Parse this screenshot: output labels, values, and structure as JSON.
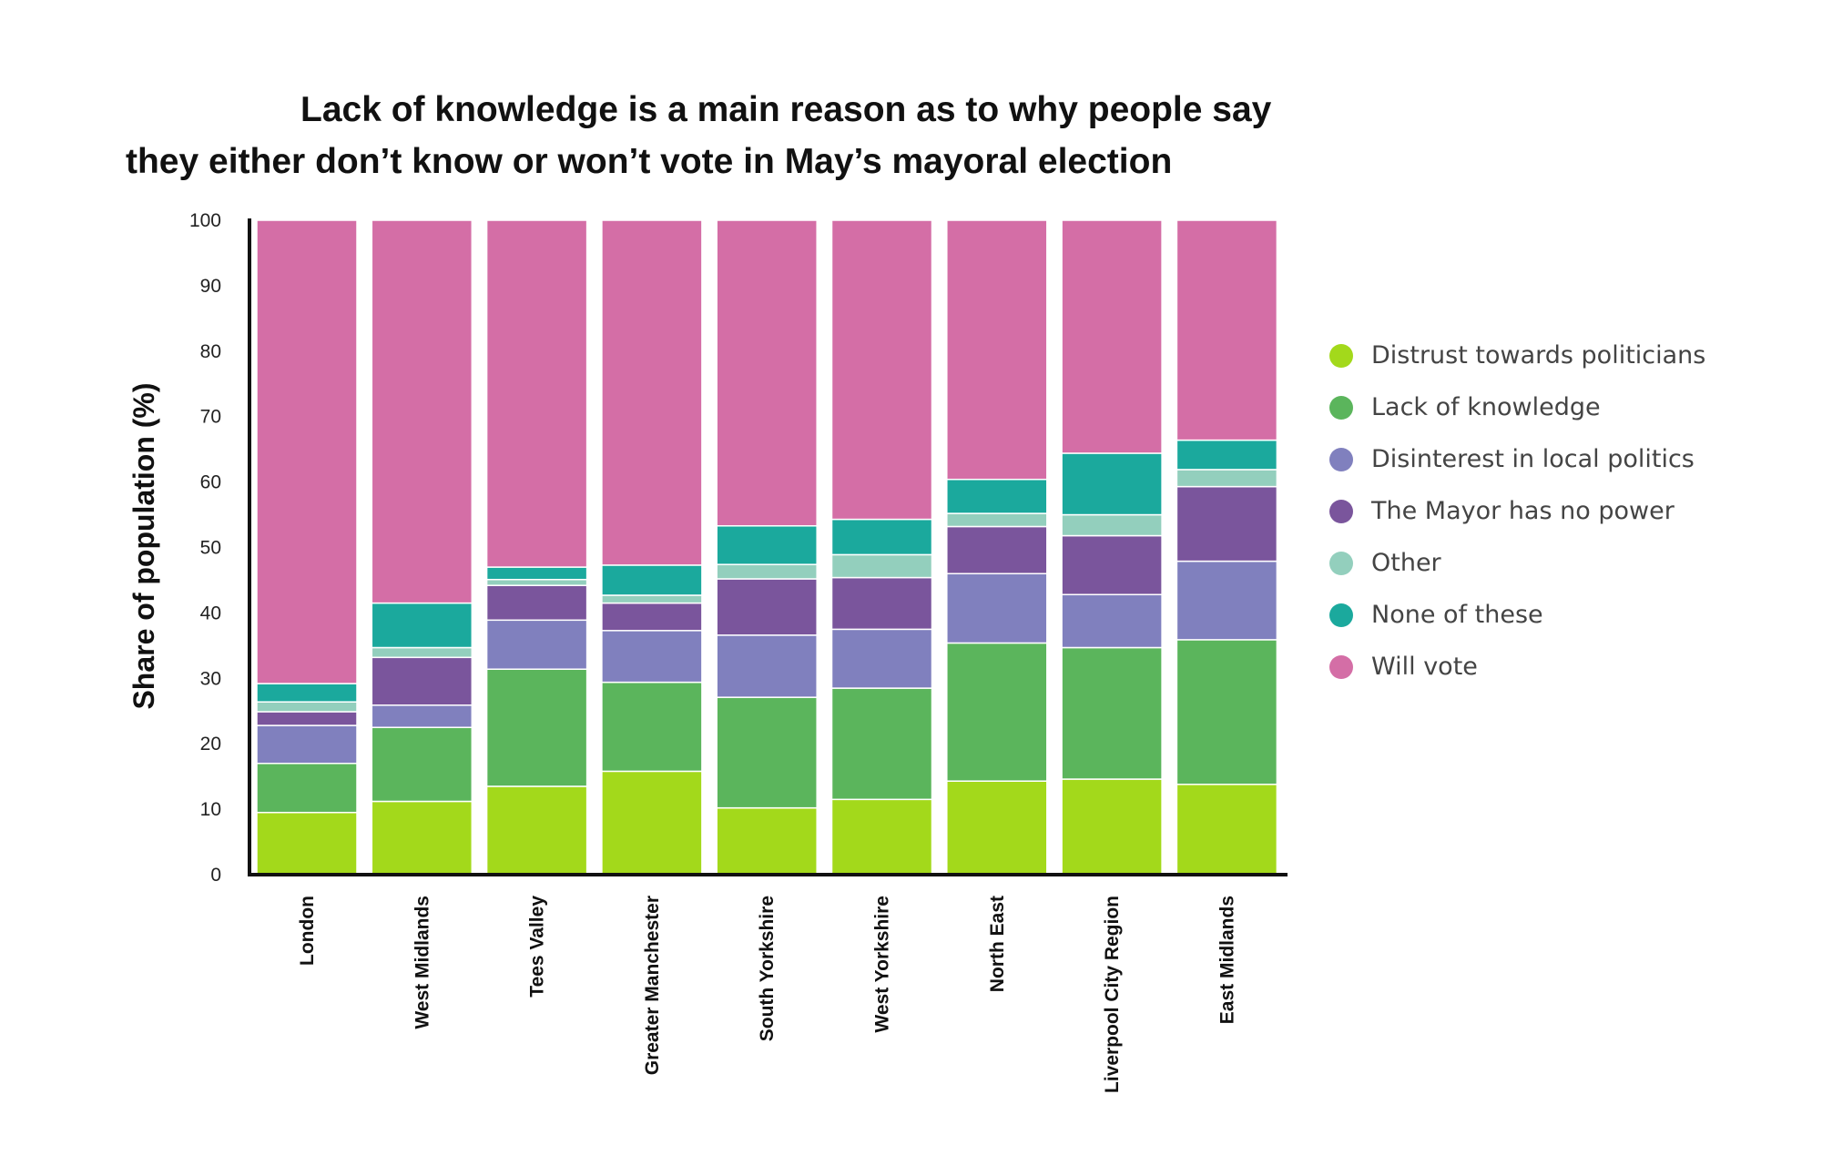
{
  "chart_data": {
    "type": "bar",
    "stacked": true,
    "title_line1": "Lack of knowledge is a main reason as to why people say",
    "title_line2": "they either don’t know or won’t vote in May’s mayoral election",
    "ylabel": "Share of population (%)",
    "ylim": [
      0,
      100
    ],
    "yticks": [
      0,
      10,
      20,
      30,
      40,
      50,
      60,
      70,
      80,
      90,
      100
    ],
    "categories": [
      "London",
      "West Midlands",
      "Tees Valley",
      "Greater Manchester",
      "South Yorkshire",
      "West Yorkshire",
      "North East",
      "Liverpool City Region",
      "East Midlands"
    ],
    "series": [
      {
        "name": "Distrust towards politicians",
        "color": "#a3d91b",
        "values": [
          9.5,
          11.2,
          13.5,
          15.8,
          10.2,
          11.5,
          14.3,
          14.6,
          13.8
        ]
      },
      {
        "name": "Lack of knowledge",
        "color": "#5bb55c",
        "values": [
          7.5,
          11.3,
          17.9,
          13.6,
          16.9,
          17.0,
          21.1,
          20.1,
          22.1
        ]
      },
      {
        "name": "Disinterest in local politics",
        "color": "#8080be",
        "values": [
          5.8,
          3.4,
          7.5,
          7.9,
          9.5,
          9.0,
          10.6,
          8.1,
          12.0
        ]
      },
      {
        "name": "The Mayor has no power",
        "color": "#7a559c",
        "values": [
          2.1,
          7.3,
          5.3,
          4.2,
          8.6,
          7.9,
          7.2,
          9.0,
          11.4
        ]
      },
      {
        "name": "Other",
        "color": "#93cfbd",
        "values": [
          1.5,
          1.5,
          0.9,
          1.2,
          2.2,
          3.5,
          2.0,
          3.2,
          2.6
        ]
      },
      {
        "name": "None of these",
        "color": "#1ba99d",
        "values": [
          2.8,
          6.8,
          1.9,
          4.6,
          5.9,
          5.4,
          5.2,
          9.4,
          4.5
        ]
      },
      {
        "name": "Will vote",
        "color": "#d46ea6",
        "values": [
          70.8,
          58.5,
          53.0,
          52.7,
          46.7,
          45.7,
          39.6,
          35.6,
          33.6
        ]
      }
    ],
    "legend_position": "right"
  }
}
